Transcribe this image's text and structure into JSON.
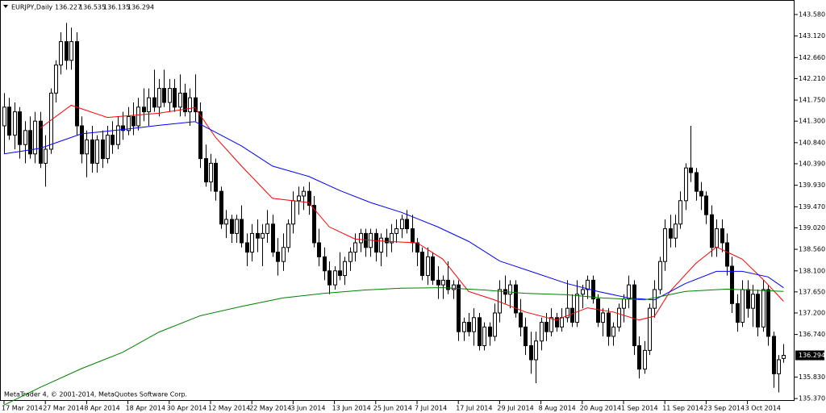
{
  "chart_data": {
    "type": "candlestick",
    "symbol": "EURJPY,Daily",
    "footer": "MetaTrader 4, © 2001-2014, MetaQuotes Software Corp.",
    "candles": [
      [
        141.2,
        141.9,
        140.6,
        141.6
      ],
      [
        141.6,
        141.8,
        140.9,
        141.0
      ],
      [
        141.0,
        141.7,
        140.7,
        141.5
      ],
      [
        141.5,
        141.6,
        140.5,
        140.8
      ],
      [
        140.8,
        141.3,
        140.4,
        141.1
      ],
      [
        141.1,
        141.4,
        140.5,
        140.6
      ],
      [
        140.6,
        141.5,
        140.4,
        141.3
      ],
      [
        141.3,
        141.5,
        140.3,
        140.4
      ],
      [
        140.4,
        141.0,
        139.9,
        140.7
      ],
      [
        140.7,
        142.0,
        140.6,
        141.9
      ],
      [
        141.9,
        142.6,
        141.7,
        142.5
      ],
      [
        142.5,
        143.2,
        142.3,
        143.0
      ],
      [
        143.0,
        143.4,
        142.4,
        142.6
      ],
      [
        142.6,
        143.3,
        142.4,
        143.0
      ],
      [
        143.0,
        143.2,
        141.0,
        141.2
      ],
      [
        141.2,
        141.4,
        140.4,
        140.6
      ],
      [
        140.6,
        141.1,
        140.1,
        140.9
      ],
      [
        140.9,
        141.2,
        140.2,
        140.4
      ],
      [
        140.4,
        141.0,
        140.2,
        140.9
      ],
      [
        140.9,
        141.1,
        140.3,
        140.5
      ],
      [
        140.5,
        141.2,
        140.4,
        141.0
      ],
      [
        141.0,
        141.3,
        140.6,
        140.8
      ],
      [
        140.8,
        141.4,
        140.7,
        141.2
      ],
      [
        141.2,
        141.5,
        140.9,
        141.1
      ],
      [
        141.1,
        141.6,
        141.0,
        141.4
      ],
      [
        141.4,
        141.7,
        141.0,
        141.2
      ],
      [
        141.2,
        141.8,
        141.1,
        141.6
      ],
      [
        141.6,
        142.0,
        141.3,
        141.5
      ],
      [
        141.5,
        142.0,
        141.2,
        141.8
      ],
      [
        141.8,
        142.4,
        141.5,
        141.6
      ],
      [
        141.6,
        142.2,
        141.4,
        142.0
      ],
      [
        142.0,
        142.4,
        141.6,
        141.7
      ],
      [
        141.7,
        142.2,
        141.5,
        142.0
      ],
      [
        142.0,
        142.2,
        141.5,
        141.6
      ],
      [
        141.6,
        142.3,
        141.4,
        141.9
      ],
      [
        141.9,
        142.1,
        141.4,
        141.5
      ],
      [
        141.5,
        142.0,
        141.2,
        141.8
      ],
      [
        141.8,
        142.3,
        141.3,
        141.5
      ],
      [
        141.5,
        141.7,
        140.3,
        140.5
      ],
      [
        140.5,
        140.8,
        139.9,
        140.0
      ],
      [
        140.0,
        140.6,
        139.8,
        140.4
      ],
      [
        140.4,
        140.5,
        139.6,
        139.8
      ],
      [
        139.8,
        139.9,
        139.0,
        139.1
      ],
      [
        139.1,
        139.4,
        138.8,
        139.2
      ],
      [
        139.2,
        139.3,
        138.7,
        138.9
      ],
      [
        138.9,
        139.3,
        138.7,
        139.2
      ],
      [
        139.2,
        139.5,
        138.6,
        138.7
      ],
      [
        138.7,
        138.9,
        138.2,
        138.5
      ],
      [
        138.5,
        139.1,
        138.3,
        138.9
      ],
      [
        138.9,
        139.2,
        138.5,
        138.8
      ],
      [
        138.8,
        139.1,
        138.2,
        138.9
      ],
      [
        138.9,
        139.4,
        138.7,
        139.1
      ],
      [
        139.1,
        139.3,
        138.4,
        138.5
      ],
      [
        138.5,
        138.8,
        138.0,
        138.3
      ],
      [
        138.3,
        138.9,
        138.1,
        138.6
      ],
      [
        138.6,
        139.2,
        138.5,
        139.1
      ],
      [
        139.1,
        139.8,
        138.9,
        139.6
      ],
      [
        139.6,
        139.9,
        139.3,
        139.7
      ],
      [
        139.7,
        139.9,
        139.4,
        139.8
      ],
      [
        139.8,
        140.0,
        139.3,
        139.5
      ],
      [
        139.5,
        139.7,
        138.6,
        138.7
      ],
      [
        138.7,
        139.0,
        138.2,
        138.4
      ],
      [
        138.4,
        138.6,
        137.9,
        138.1
      ],
      [
        138.1,
        138.3,
        137.6,
        137.8
      ],
      [
        137.8,
        138.2,
        137.7,
        138.1
      ],
      [
        138.1,
        138.5,
        137.9,
        138.0
      ],
      [
        138.0,
        138.4,
        137.8,
        138.3
      ],
      [
        138.3,
        138.6,
        138.1,
        138.5
      ],
      [
        138.5,
        138.9,
        138.3,
        138.7
      ],
      [
        138.7,
        139.0,
        138.5,
        138.9
      ],
      [
        138.9,
        139.0,
        138.4,
        138.6
      ],
      [
        138.6,
        139.0,
        138.4,
        138.9
      ],
      [
        138.9,
        139.0,
        138.3,
        138.5
      ],
      [
        138.5,
        138.9,
        138.2,
        138.8
      ],
      [
        138.8,
        139.0,
        138.4,
        138.7
      ],
      [
        138.7,
        139.1,
        138.5,
        138.9
      ],
      [
        138.9,
        139.2,
        138.7,
        139.0
      ],
      [
        139.0,
        139.3,
        138.8,
        139.2
      ],
      [
        139.2,
        139.4,
        138.9,
        139.0
      ],
      [
        139.0,
        139.3,
        138.5,
        138.7
      ],
      [
        138.7,
        138.8,
        138.2,
        138.5
      ],
      [
        138.5,
        138.6,
        137.9,
        138.0
      ],
      [
        138.0,
        138.6,
        137.8,
        138.4
      ],
      [
        138.4,
        138.5,
        137.8,
        137.9
      ],
      [
        137.9,
        138.2,
        137.5,
        137.8
      ],
      [
        137.8,
        138.0,
        137.5,
        137.9
      ],
      [
        137.9,
        138.3,
        137.6,
        137.7
      ],
      [
        137.7,
        137.9,
        137.5,
        137.8
      ],
      [
        137.8,
        137.9,
        136.6,
        136.8
      ],
      [
        136.8,
        137.1,
        136.6,
        137.0
      ],
      [
        137.0,
        137.2,
        136.7,
        136.8
      ],
      [
        136.8,
        137.3,
        136.5,
        137.1
      ],
      [
        137.1,
        137.2,
        136.4,
        136.5
      ],
      [
        136.5,
        137.0,
        136.4,
        136.9
      ],
      [
        136.9,
        137.0,
        136.5,
        136.7
      ],
      [
        136.7,
        137.4,
        136.6,
        137.2
      ],
      [
        137.2,
        137.9,
        137.0,
        137.7
      ],
      [
        137.7,
        138.0,
        137.4,
        137.6
      ],
      [
        137.6,
        137.9,
        137.3,
        137.8
      ],
      [
        137.8,
        137.9,
        137.1,
        137.2
      ],
      [
        137.2,
        137.5,
        136.7,
        136.9
      ],
      [
        136.9,
        137.1,
        136.3,
        136.5
      ],
      [
        136.5,
        136.8,
        135.9,
        136.2
      ],
      [
        136.2,
        136.8,
        135.7,
        136.6
      ],
      [
        136.6,
        137.1,
        136.4,
        137.0
      ],
      [
        137.0,
        137.2,
        136.6,
        136.8
      ],
      [
        136.8,
        137.3,
        136.7,
        137.1
      ],
      [
        137.1,
        137.2,
        136.8,
        136.9
      ],
      [
        136.9,
        137.3,
        136.8,
        137.1
      ],
      [
        137.1,
        137.9,
        137.0,
        137.3
      ],
      [
        137.3,
        137.6,
        136.9,
        137.0
      ],
      [
        137.0,
        137.9,
        136.9,
        137.6
      ],
      [
        137.6,
        137.8,
        137.3,
        137.7
      ],
      [
        137.7,
        138.0,
        137.5,
        137.9
      ],
      [
        137.9,
        138.0,
        137.4,
        137.5
      ],
      [
        137.5,
        137.6,
        136.9,
        137.0
      ],
      [
        137.0,
        137.3,
        136.7,
        137.2
      ],
      [
        137.2,
        137.3,
        136.5,
        136.7
      ],
      [
        136.7,
        137.0,
        136.5,
        136.9
      ],
      [
        136.9,
        137.4,
        136.8,
        137.3
      ],
      [
        137.3,
        137.6,
        137.0,
        137.5
      ],
      [
        137.5,
        138.0,
        137.3,
        137.8
      ],
      [
        137.8,
        137.9,
        136.3,
        136.5
      ],
      [
        136.5,
        136.7,
        135.8,
        136.0
      ],
      [
        136.0,
        136.6,
        135.9,
        136.4
      ],
      [
        136.4,
        137.4,
        136.3,
        137.3
      ],
      [
        137.3,
        137.9,
        137.1,
        137.7
      ],
      [
        137.7,
        138.4,
        137.6,
        138.3
      ],
      [
        138.3,
        139.2,
        138.1,
        139.0
      ],
      [
        139.0,
        139.3,
        138.6,
        138.8
      ],
      [
        138.8,
        139.3,
        138.6,
        139.1
      ],
      [
        139.1,
        139.8,
        139.0,
        139.6
      ],
      [
        139.6,
        140.4,
        139.4,
        140.3
      ],
      [
        140.3,
        141.2,
        140.0,
        140.2
      ],
      [
        140.2,
        140.3,
        139.6,
        139.8
      ],
      [
        139.8,
        140.0,
        139.4,
        139.7
      ],
      [
        139.7,
        139.8,
        139.1,
        139.3
      ],
      [
        139.3,
        139.5,
        138.4,
        138.6
      ],
      [
        138.6,
        139.2,
        138.4,
        139.0
      ],
      [
        139.0,
        139.2,
        138.5,
        138.7
      ],
      [
        138.7,
        138.9,
        138.0,
        138.2
      ],
      [
        138.2,
        138.4,
        137.2,
        137.4
      ],
      [
        137.4,
        137.6,
        136.8,
        137.0
      ],
      [
        137.0,
        137.9,
        136.9,
        137.7
      ],
      [
        137.7,
        137.9,
        137.1,
        137.3
      ],
      [
        137.3,
        137.8,
        136.9,
        137.6
      ],
      [
        137.6,
        137.7,
        136.7,
        136.9
      ],
      [
        136.9,
        137.9,
        136.8,
        137.7
      ],
      [
        137.7,
        137.8,
        136.5,
        136.7
      ],
      [
        136.7,
        136.8,
        135.6,
        135.9
      ],
      [
        135.9,
        136.3,
        135.5,
        136.2
      ],
      [
        136.227,
        136.535,
        136.135,
        136.294
      ]
    ],
    "series": [
      {
        "color": "#ff0000",
        "x": [
          7,
          13,
          20,
          30,
          37,
          41,
          46,
          52,
          59,
          63,
          68,
          74,
          80,
          85,
          90,
          95,
          101,
          107,
          113,
          118,
          123,
          126,
          129,
          134,
          138,
          143,
          147,
          151
        ],
        "values": [
          141.15,
          141.64,
          141.38,
          141.47,
          141.59,
          140.95,
          140.34,
          139.65,
          139.56,
          139.04,
          138.78,
          138.73,
          138.7,
          138.35,
          137.66,
          137.48,
          137.22,
          137.05,
          137.31,
          137.22,
          137.05,
          137.13,
          137.66,
          138.26,
          138.61,
          138.35,
          137.92,
          137.45
        ]
      },
      {
        "color": "#0000ff",
        "x": [
          0,
          7,
          15,
          23,
          30,
          37,
          40,
          46,
          52,
          59,
          65,
          71,
          77,
          84,
          90,
          96,
          102,
          109,
          115,
          121,
          126,
          132,
          138,
          143,
          148,
          151
        ],
        "values": [
          140.6,
          140.72,
          141.03,
          141.12,
          141.21,
          141.29,
          141.12,
          140.77,
          140.34,
          140.12,
          139.82,
          139.56,
          139.35,
          139.04,
          138.73,
          138.31,
          138.09,
          137.83,
          137.66,
          137.52,
          137.48,
          137.83,
          138.09,
          138.09,
          137.97,
          137.74
        ]
      },
      {
        "color": "#008000",
        "x": [
          0,
          7,
          15,
          23,
          30,
          38,
          46,
          54,
          62,
          70,
          77,
          85,
          93,
          101,
          109,
          116,
          124,
          132,
          140,
          151
        ],
        "values": [
          135.23,
          135.61,
          136.01,
          136.36,
          136.79,
          137.14,
          137.34,
          137.52,
          137.62,
          137.69,
          137.73,
          137.74,
          137.69,
          137.62,
          137.59,
          137.52,
          137.48,
          137.66,
          137.71,
          137.66
        ]
      }
    ],
    "ylim": [
      135.32,
      143.89
    ],
    "yticks": [
      {
        "value": 143.58,
        "label": "143.580"
      },
      {
        "value": 143.12,
        "label": "143.120"
      },
      {
        "value": 142.66,
        "label": "142.660"
      },
      {
        "value": 142.21,
        "label": "142.210"
      },
      {
        "value": 141.75,
        "label": "141.750"
      },
      {
        "value": 141.3,
        "label": "141.300"
      },
      {
        "value": 140.84,
        "label": "140.840"
      },
      {
        "value": 140.39,
        "label": "140.390"
      },
      {
        "value": 139.93,
        "label": "139.930"
      },
      {
        "value": 139.47,
        "label": "139.470"
      },
      {
        "value": 139.02,
        "label": "139.020"
      },
      {
        "value": 138.56,
        "label": "138.560"
      },
      {
        "value": 138.1,
        "label": "138.100"
      },
      {
        "value": 137.65,
        "label": "137.650"
      },
      {
        "value": 137.2,
        "label": "137.200"
      },
      {
        "value": 136.74,
        "label": "136.740"
      },
      {
        "value": 135.83,
        "label": "135.830"
      },
      {
        "value": 135.37,
        "label": "135.370"
      }
    ],
    "xticks": [
      {
        "value": 0,
        "label": "17 Mar 2014"
      },
      {
        "value": 8,
        "label": "27 Mar 2014"
      },
      {
        "value": 16,
        "label": "8 Apr 2014"
      },
      {
        "value": 24,
        "label": "18 Apr 2014"
      },
      {
        "value": 32,
        "label": "30 Apr 2014"
      },
      {
        "value": 40,
        "label": "12 May 2014"
      },
      {
        "value": 48,
        "label": "22 May 2014"
      },
      {
        "value": 56,
        "label": "3 Jun 2014"
      },
      {
        "value": 64,
        "label": "13 Jun 2014"
      },
      {
        "value": 72,
        "label": "25 Jun 2014"
      },
      {
        "value": 80,
        "label": "7 Jul 2014"
      },
      {
        "value": 88,
        "label": "17 Jul 2014"
      },
      {
        "value": 96,
        "label": "29 Jul 2014"
      },
      {
        "value": 104,
        "label": "8 Aug 2014"
      },
      {
        "value": 112,
        "label": "20 Aug 2014"
      },
      {
        "value": 120,
        "label": "1 Sep 2014"
      },
      {
        "value": 128,
        "label": "11 Sep 2014"
      },
      {
        "value": 136,
        "label": "23 Sep 2014"
      },
      {
        "value": 144,
        "label": "3 Oct 2014"
      }
    ]
  }
}
